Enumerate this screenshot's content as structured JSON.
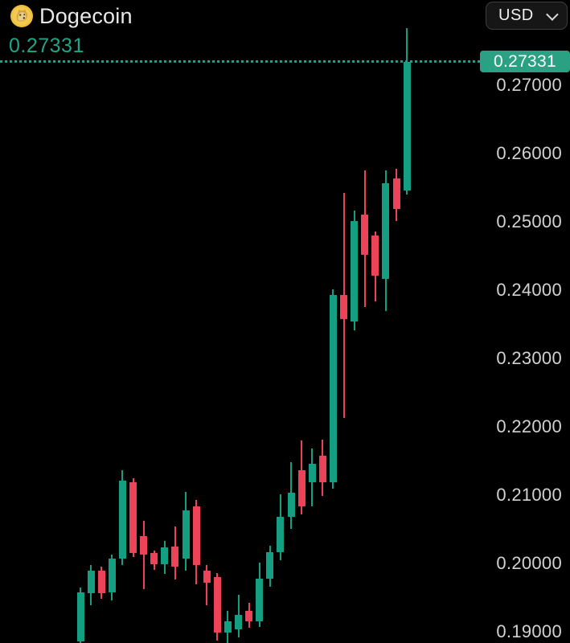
{
  "header": {
    "coin_name": "Dogecoin",
    "currency_selector": {
      "value": "USD"
    }
  },
  "current_price_text": "0.27331",
  "colors": {
    "background": "#000000",
    "candle_up": "#159f82",
    "candle_down": "#ec4358",
    "accent_teal": "#20a487",
    "badge_background": "#2aa183",
    "badge_text": "#ffffff",
    "axis_text": "#d2d2d2",
    "title_text": "#e8e8e8"
  },
  "chart_data": {
    "type": "candlestick",
    "title": "Dogecoin",
    "quote_currency": "USD",
    "last_price": 0.27331,
    "last_price_badge": "0.27331",
    "y_axis": {
      "labels": [
        "0.27000",
        "0.26000",
        "0.25000",
        "0.24000",
        "0.23000",
        "0.22000",
        "0.21000",
        "0.20000",
        "0.19000"
      ],
      "values": [
        0.27,
        0.26,
        0.25,
        0.24,
        0.23,
        0.22,
        0.21,
        0.2,
        0.19
      ],
      "visible_range_top": 0.28235,
      "visible_range_bottom": 0.18824,
      "grid": "off",
      "position": "right"
    },
    "x_axis": {
      "labels": [],
      "note": "time axis not visible in view"
    },
    "candles": [
      {
        "o": 0.1885,
        "h": 0.1964,
        "l": 0.1878,
        "c": 0.1956
      },
      {
        "o": 0.1955,
        "h": 0.1997,
        "l": 0.1938,
        "c": 0.1988
      },
      {
        "o": 0.1988,
        "h": 0.1994,
        "l": 0.1947,
        "c": 0.1955
      },
      {
        "o": 0.1956,
        "h": 0.2012,
        "l": 0.1945,
        "c": 0.2006
      },
      {
        "o": 0.2006,
        "h": 0.2135,
        "l": 0.1996,
        "c": 0.212
      },
      {
        "o": 0.2118,
        "h": 0.2124,
        "l": 0.2008,
        "c": 0.2014
      },
      {
        "o": 0.2039,
        "h": 0.2061,
        "l": 0.1961,
        "c": 0.2012
      },
      {
        "o": 0.2014,
        "h": 0.2018,
        "l": 0.1989,
        "c": 0.1998
      },
      {
        "o": 0.1998,
        "h": 0.2032,
        "l": 0.1983,
        "c": 0.2022
      },
      {
        "o": 0.2024,
        "h": 0.2053,
        "l": 0.1975,
        "c": 0.1994
      },
      {
        "o": 0.2006,
        "h": 0.2104,
        "l": 0.1988,
        "c": 0.2076
      },
      {
        "o": 0.2082,
        "h": 0.2092,
        "l": 0.1968,
        "c": 0.1996
      },
      {
        "o": 0.1988,
        "h": 0.1996,
        "l": 0.1938,
        "c": 0.1971
      },
      {
        "o": 0.1979,
        "h": 0.1985,
        "l": 0.1886,
        "c": 0.1898
      },
      {
        "o": 0.1898,
        "h": 0.1929,
        "l": 0.1882,
        "c": 0.1914
      },
      {
        "o": 0.1902,
        "h": 0.1953,
        "l": 0.189,
        "c": 0.1924
      },
      {
        "o": 0.1929,
        "h": 0.1941,
        "l": 0.1904,
        "c": 0.1914
      },
      {
        "o": 0.1914,
        "h": 0.2,
        "l": 0.1906,
        "c": 0.1976
      },
      {
        "o": 0.1976,
        "h": 0.2025,
        "l": 0.1965,
        "c": 0.2015
      },
      {
        "o": 0.2015,
        "h": 0.21,
        "l": 0.2004,
        "c": 0.2067
      },
      {
        "o": 0.2067,
        "h": 0.2147,
        "l": 0.2049,
        "c": 0.2102
      },
      {
        "o": 0.2135,
        "h": 0.2179,
        "l": 0.2071,
        "c": 0.2082
      },
      {
        "o": 0.2118,
        "h": 0.2167,
        "l": 0.2082,
        "c": 0.2145
      },
      {
        "o": 0.2156,
        "h": 0.218,
        "l": 0.2098,
        "c": 0.2118
      },
      {
        "o": 0.2118,
        "h": 0.24,
        "l": 0.2108,
        "c": 0.2392
      },
      {
        "o": 0.2392,
        "h": 0.2541,
        "l": 0.2212,
        "c": 0.2357
      },
      {
        "o": 0.2353,
        "h": 0.2515,
        "l": 0.234,
        "c": 0.25
      },
      {
        "o": 0.251,
        "h": 0.2574,
        "l": 0.2374,
        "c": 0.2451
      },
      {
        "o": 0.2479,
        "h": 0.2485,
        "l": 0.2382,
        "c": 0.242
      },
      {
        "o": 0.2415,
        "h": 0.2574,
        "l": 0.2368,
        "c": 0.2555
      },
      {
        "o": 0.2562,
        "h": 0.2576,
        "l": 0.25,
        "c": 0.2518
      },
      {
        "o": 0.2544,
        "h": 0.2782,
        "l": 0.2539,
        "c": 0.27331
      }
    ]
  }
}
